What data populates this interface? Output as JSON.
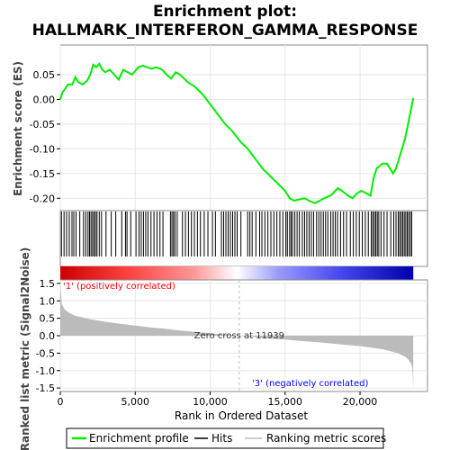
{
  "chart_data": {
    "type": "line",
    "title_line1": "Enrichment plot:",
    "title_line2": "HALLMARK_INTERFERON_GAMMA_RESPONSE",
    "xlabel": "Rank in Ordered Dataset",
    "xlim": [
      0,
      24500
    ],
    "x_ticks": [
      0,
      5000,
      10000,
      15000,
      20000
    ],
    "x_tick_labels": [
      "0",
      "5,000",
      "10,000",
      "15,000",
      "20,000"
    ],
    "es_panel": {
      "ylabel": "Enrichment score (ES)",
      "ylim": [
        -0.225,
        0.11
      ],
      "y_ticks": [
        0.05,
        0.0,
        -0.05,
        -0.1,
        -0.15,
        -0.2
      ],
      "y_tick_labels": [
        "0.05",
        "0.00",
        "-0.05",
        "-0.10",
        "-0.15",
        "-0.20"
      ],
      "series": [
        {
          "name": "Enrichment profile",
          "color": "#00ee00",
          "x": [
            0,
            150,
            300,
            500,
            800,
            1000,
            1200,
            1500,
            1800,
            2000,
            2200,
            2400,
            2600,
            2800,
            3000,
            3300,
            3600,
            3900,
            4200,
            4500,
            4800,
            5200,
            5500,
            5800,
            6100,
            6400,
            6800,
            7100,
            7400,
            7700,
            8000,
            8500,
            9000,
            9500,
            10000,
            10500,
            11000,
            11500,
            12000,
            12500,
            13000,
            13500,
            14000,
            14500,
            15000,
            15300,
            15600,
            16000,
            16300,
            16600,
            17000,
            17300,
            17600,
            18000,
            18200,
            18500,
            18800,
            19200,
            19500,
            19800,
            20100,
            20400,
            20700,
            20900,
            21100,
            21300,
            21500,
            21800,
            22000,
            22200,
            22400,
            22600,
            22800,
            23000,
            23200,
            23400,
            23550
          ],
          "y": [
            0.0,
            0.015,
            0.02,
            0.03,
            0.03,
            0.045,
            0.035,
            0.03,
            0.038,
            0.05,
            0.07,
            0.065,
            0.072,
            0.06,
            0.055,
            0.06,
            0.05,
            0.04,
            0.06,
            0.055,
            0.05,
            0.065,
            0.068,
            0.065,
            0.062,
            0.065,
            0.06,
            0.05,
            0.042,
            0.055,
            0.05,
            0.035,
            0.025,
            0.01,
            -0.01,
            -0.03,
            -0.05,
            -0.065,
            -0.085,
            -0.1,
            -0.12,
            -0.14,
            -0.155,
            -0.17,
            -0.185,
            -0.2,
            -0.205,
            -0.202,
            -0.2,
            -0.205,
            -0.21,
            -0.205,
            -0.2,
            -0.195,
            -0.19,
            -0.18,
            -0.185,
            -0.195,
            -0.2,
            -0.19,
            -0.185,
            -0.19,
            -0.195,
            -0.16,
            -0.14,
            -0.135,
            -0.13,
            -0.13,
            -0.14,
            -0.15,
            -0.14,
            -0.12,
            -0.1,
            -0.08,
            -0.05,
            -0.02,
            0.003
          ]
        }
      ]
    },
    "hits_panel": {
      "label": "Hits",
      "positions": [
        80,
        250,
        420,
        600,
        780,
        900,
        1050,
        1300,
        1550,
        1700,
        1850,
        1950,
        2050,
        2150,
        2250,
        2350,
        2450,
        2600,
        2750,
        3050,
        3400,
        3700,
        4100,
        4350,
        4450,
        4700,
        5050,
        5250,
        5400,
        5550,
        5700,
        5850,
        6050,
        6250,
        6450,
        6650,
        6850,
        7350,
        7450,
        7550,
        7650,
        7800,
        8150,
        8350,
        8550,
        8750,
        8950,
        9150,
        9350,
        9600,
        9850,
        10150,
        10350,
        10750,
        10900,
        11050,
        11200,
        11350,
        11500,
        11650,
        11800,
        12050,
        12500,
        12650,
        12800,
        13050,
        13300,
        13450,
        13650,
        13850,
        14050,
        14250,
        14450,
        14650,
        14850,
        15050,
        15150,
        15300,
        15400,
        15500,
        15650,
        15800,
        15950,
        16150,
        16300,
        16450,
        16600,
        16750,
        16900,
        17100,
        17250,
        17400,
        17550,
        17700,
        17850,
        18050,
        18200,
        18350,
        18500,
        18700,
        18900,
        19100,
        19350,
        19550,
        19750,
        19950,
        20150,
        20350,
        20550,
        20750,
        20850,
        20950,
        21050,
        21150,
        21250,
        21400,
        21600,
        21800,
        22050,
        22250,
        22400,
        22550,
        22650,
        22750,
        22850,
        22950,
        23050,
        23150,
        23250,
        23350,
        23450
      ]
    },
    "rank_bar": {
      "positive_color": "#ff0000",
      "negative_color": "#0000ff",
      "neutral_color": "#ffffff"
    },
    "metric_panel": {
      "ylabel": "Ranked list metric (Signal2Noise)",
      "ylim": [
        -1.6,
        1.6
      ],
      "y_ticks": [
        1.5,
        1.0,
        0.5,
        0.0,
        -0.5,
        -1.0,
        -1.5
      ],
      "y_tick_labels": [
        "1.5",
        "1.0",
        "0.5",
        "0.0",
        "-0.5",
        "-1.0",
        "-1.5"
      ],
      "fill_color": "#bbbbbb",
      "x": [
        0,
        100,
        300,
        600,
        1000,
        2000,
        3000,
        4000,
        5000,
        6000,
        7000,
        8000,
        9000,
        10000,
        11000,
        11939,
        13000,
        14000,
        15000,
        16000,
        17000,
        18000,
        19000,
        20000,
        21000,
        21500,
        22000,
        22500,
        23000,
        23200,
        23400,
        23500,
        23550
      ],
      "y": [
        1.5,
        0.9,
        0.75,
        0.65,
        0.57,
        0.47,
        0.4,
        0.34,
        0.29,
        0.24,
        0.2,
        0.15,
        0.11,
        0.07,
        0.03,
        0.0,
        -0.04,
        -0.08,
        -0.11,
        -0.15,
        -0.18,
        -0.22,
        -0.26,
        -0.3,
        -0.36,
        -0.39,
        -0.44,
        -0.5,
        -0.6,
        -0.67,
        -0.8,
        -0.95,
        -1.5
      ],
      "zero_cross_label": "Zero cross at 11939",
      "zero_cross_x": 11939,
      "positive_label": "'1' (positively correlated)",
      "negative_label": "'3' (negatively correlated)",
      "positive_label_color": "#ff0000",
      "negative_label_color": "#0000ff"
    },
    "legend": [
      {
        "label": "Enrichment profile",
        "color": "#00ee00"
      },
      {
        "label": "Hits",
        "color": "#000000"
      },
      {
        "label": "Ranking metric scores",
        "color": "#bbbbbb"
      }
    ]
  }
}
